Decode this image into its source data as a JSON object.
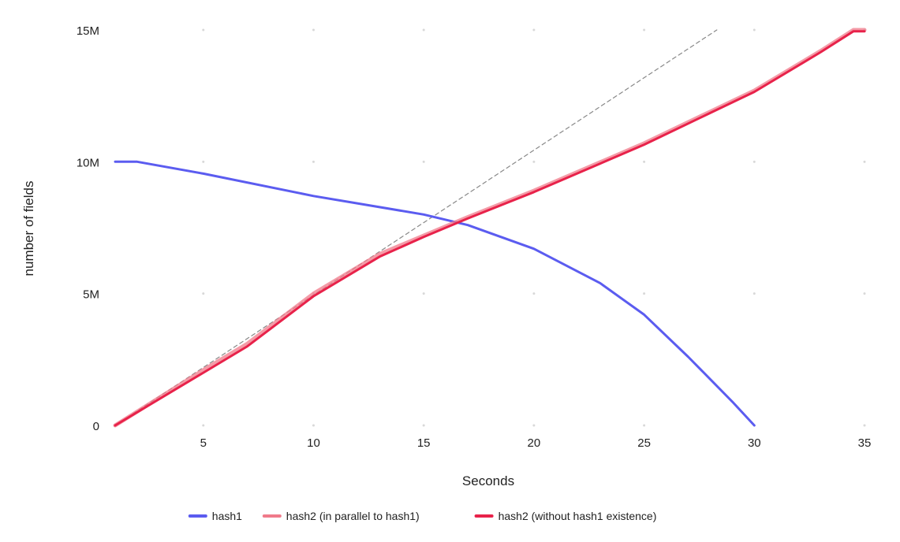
{
  "chart_data": {
    "type": "line",
    "xlabel": "Seconds",
    "ylabel": "number of fields",
    "xlim": [
      1,
      35
    ],
    "ylim": [
      0,
      15000000
    ],
    "x_ticks": [
      5,
      10,
      15,
      20,
      25,
      30,
      35
    ],
    "x_tick_labels": [
      "5",
      "10",
      "15",
      "20",
      "25",
      "30",
      "35"
    ],
    "y_ticks": [
      0,
      5000000,
      10000000,
      15000000
    ],
    "y_tick_labels": [
      "0",
      "5M",
      "10M",
      "15M"
    ],
    "legend_position": "bottom",
    "series": [
      {
        "name": "hash1",
        "color": "#5b5cf0",
        "style": "solid",
        "points": [
          [
            1,
            10000000
          ],
          [
            2,
            10000000
          ],
          [
            5,
            9550000
          ],
          [
            10,
            8700000
          ],
          [
            15,
            8000000
          ],
          [
            17,
            7600000
          ],
          [
            20,
            6700000
          ],
          [
            23,
            5400000
          ],
          [
            25,
            4200000
          ],
          [
            27,
            2600000
          ],
          [
            29,
            900000
          ],
          [
            30,
            0
          ]
        ]
      },
      {
        "name": "hash2 (in parallel to hash1)",
        "color": "#f07a8a",
        "style": "solid",
        "points": [
          [
            1,
            0
          ],
          [
            5,
            2100000
          ],
          [
            7,
            3100000
          ],
          [
            10,
            5000000
          ],
          [
            13,
            6500000
          ],
          [
            15,
            7200000
          ],
          [
            17,
            7900000
          ],
          [
            20,
            8900000
          ],
          [
            25,
            10700000
          ],
          [
            28,
            11900000
          ],
          [
            30,
            12700000
          ],
          [
            33,
            14200000
          ],
          [
            34.5,
            15000000
          ],
          [
            35,
            15000000
          ]
        ]
      },
      {
        "name": "hash2 (without hash1 existence)",
        "color": "#e8224a",
        "style": "solid",
        "points": [
          [
            1,
            0
          ],
          [
            5,
            2000000
          ],
          [
            7,
            3000000
          ],
          [
            10,
            4900000
          ],
          [
            13,
            6400000
          ],
          [
            15,
            7150000
          ],
          [
            17,
            7850000
          ],
          [
            20,
            8850000
          ],
          [
            25,
            10650000
          ],
          [
            28,
            11850000
          ],
          [
            30,
            12650000
          ],
          [
            33,
            14150000
          ],
          [
            34.5,
            14950000
          ],
          [
            35,
            14950000
          ]
        ]
      },
      {
        "name": "",
        "color": "#888888",
        "style": "dashed",
        "points": [
          [
            1,
            0
          ],
          [
            28.3,
            15000000
          ]
        ]
      }
    ]
  }
}
